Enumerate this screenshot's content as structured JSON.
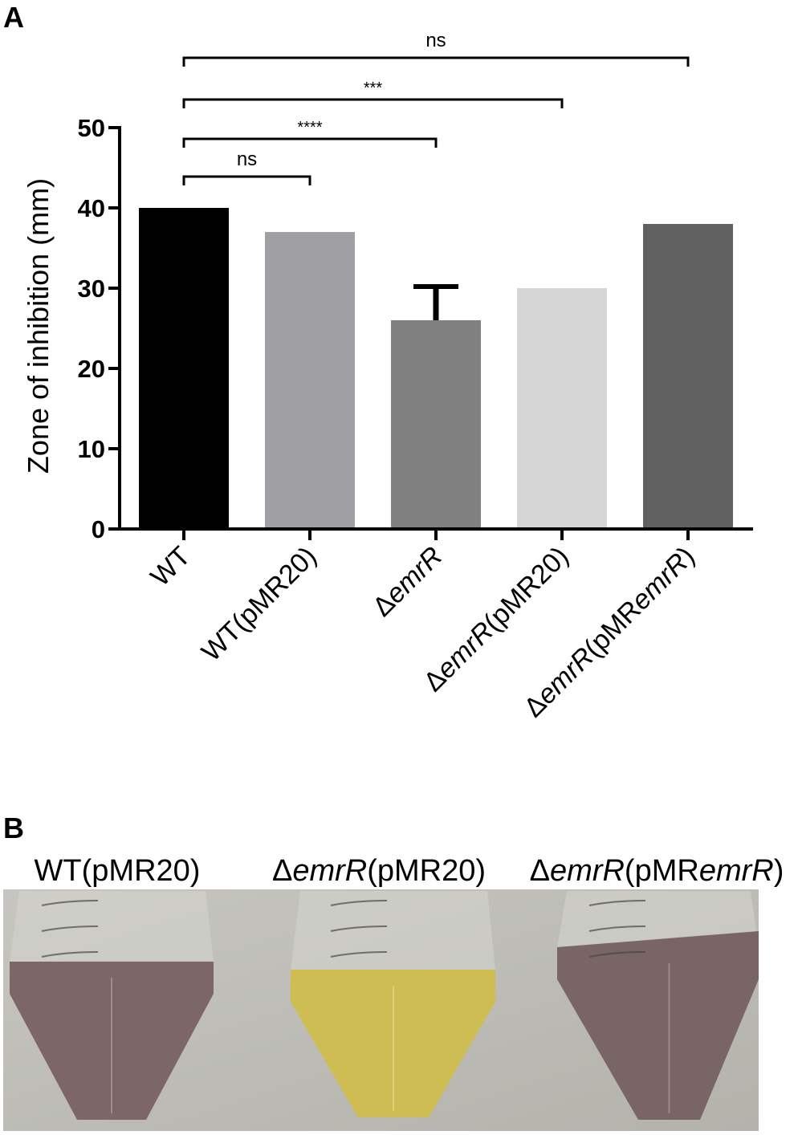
{
  "panelA": {
    "letter": "A",
    "chart_data": {
      "type": "bar",
      "ylabel": "Zone of inhibition (mm)",
      "ylim": [
        0,
        50
      ],
      "yticks": [
        "0",
        "10",
        "20",
        "30",
        "40",
        "50"
      ],
      "categories": [
        "WT",
        "WT(pMR20)",
        "ΔemrR",
        "ΔemrR(pMR20)",
        "ΔemrR(pMRemrR)"
      ],
      "category_parts": [
        [
          {
            "t": "WT",
            "i": false
          }
        ],
        [
          {
            "t": "WT(pMR20)",
            "i": false
          }
        ],
        [
          {
            "t": "Δ",
            "i": false
          },
          {
            "t": "emrR",
            "i": true
          }
        ],
        [
          {
            "t": "Δ",
            "i": false
          },
          {
            "t": "emrR",
            "i": true
          },
          {
            "t": "(pMR20)",
            "i": false
          }
        ],
        [
          {
            "t": "Δ",
            "i": false
          },
          {
            "t": "emrR",
            "i": true
          },
          {
            "t": "(pMR",
            "i": false
          },
          {
            "t": "emrR",
            "i": true
          },
          {
            "t": ")",
            "i": false
          }
        ]
      ],
      "values": [
        40,
        37,
        26,
        30,
        38
      ],
      "errors": [
        0,
        0,
        4.2,
        0,
        0
      ],
      "colors": [
        "#000000",
        "#a0a0a4",
        "#808080",
        "#d6d6d6",
        "#616161"
      ],
      "significance": [
        {
          "from": 0,
          "to": 1,
          "label": "ns"
        },
        {
          "from": 0,
          "to": 2,
          "label": "****"
        },
        {
          "from": 0,
          "to": 3,
          "label": "***"
        },
        {
          "from": 0,
          "to": 4,
          "label": "ns"
        }
      ]
    }
  },
  "panelB": {
    "letter": "B",
    "labels": [
      [
        {
          "t": "WT(pMR20)",
          "i": false
        }
      ],
      [
        {
          "t": "Δ",
          "i": false
        },
        {
          "t": "emrR",
          "i": true
        },
        {
          "t": "(pMR20)",
          "i": false
        }
      ],
      [
        {
          "t": "Δ",
          "i": false
        },
        {
          "t": "emrR",
          "i": true
        },
        {
          "t": "(pMR",
          "i": false
        },
        {
          "t": "emrR",
          "i": true
        },
        {
          "t": ")",
          "i": false
        }
      ]
    ],
    "tube_colors": [
      "#7d6668",
      "#cdbd53",
      "#7a6566"
    ],
    "background_color": "#bdbcb6"
  }
}
